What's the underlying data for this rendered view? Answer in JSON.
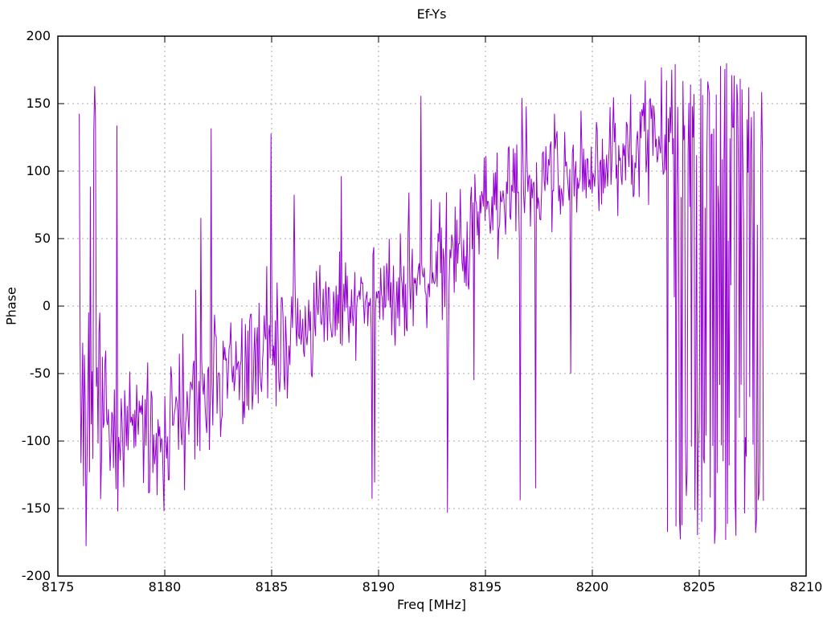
{
  "chart_data": {
    "type": "line",
    "title": "Ef-Ys",
    "xlabel": "Freq [MHz]",
    "ylabel": "Phase",
    "xlim": [
      8175,
      8210
    ],
    "ylim": [
      -200,
      200
    ],
    "x_ticks": [
      8175,
      8180,
      8185,
      8190,
      8195,
      8200,
      8205,
      8210
    ],
    "y_ticks": [
      -200,
      -150,
      -100,
      -50,
      0,
      50,
      100,
      150,
      200
    ],
    "grid": true,
    "grid_style": "dotted",
    "legend_position": "none",
    "colors": {
      "line": "#9400d3",
      "grid": "#a8a8a8",
      "border": "#000000",
      "background": "#ffffff",
      "text": "#000000"
    },
    "series": [
      {
        "name": "Ef-Ys",
        "x_start": 8176.0,
        "x_end": 8208.0,
        "n_points": 800,
        "seed": 7,
        "wrap_degrees": 180,
        "spike_probability": 0.05,
        "spike_amplitude": 160,
        "trend_envelope_f_mean_spread": [
          [
            8176.0,
            -60,
            170
          ],
          [
            8176.8,
            -130,
            150
          ],
          [
            8177.4,
            -105,
            65
          ],
          [
            8178.2,
            -95,
            55
          ],
          [
            8179.0,
            -90,
            55
          ],
          [
            8179.8,
            -95,
            60
          ],
          [
            8180.6,
            -85,
            75
          ],
          [
            8181.4,
            -75,
            65
          ],
          [
            8182.2,
            -60,
            55
          ],
          [
            8183.0,
            -55,
            60
          ],
          [
            8183.8,
            -45,
            50
          ],
          [
            8184.6,
            -35,
            50
          ],
          [
            8185.4,
            -25,
            55
          ],
          [
            8186.2,
            -18,
            50
          ],
          [
            8187.0,
            -12,
            50
          ],
          [
            8188.0,
            -5,
            48
          ],
          [
            8189.0,
            2,
            48
          ],
          [
            8190.0,
            8,
            50
          ],
          [
            8191.0,
            15,
            52
          ],
          [
            8192.0,
            28,
            55
          ],
          [
            8193.0,
            40,
            55
          ],
          [
            8194.0,
            52,
            55
          ],
          [
            8195.0,
            68,
            52
          ],
          [
            8196.0,
            82,
            50
          ],
          [
            8197.0,
            98,
            45
          ],
          [
            8198.0,
            95,
            55
          ],
          [
            8199.0,
            105,
            52
          ],
          [
            8200.0,
            112,
            50
          ],
          [
            8201.0,
            108,
            55
          ],
          [
            8202.0,
            118,
            52
          ],
          [
            8203.0,
            128,
            52
          ],
          [
            8204.0,
            142,
            80
          ],
          [
            8204.8,
            175,
            165
          ],
          [
            8205.6,
            180,
            170
          ],
          [
            8206.4,
            180,
            170
          ],
          [
            8207.2,
            180,
            170
          ],
          [
            8208.0,
            178,
            165
          ]
        ]
      }
    ]
  }
}
